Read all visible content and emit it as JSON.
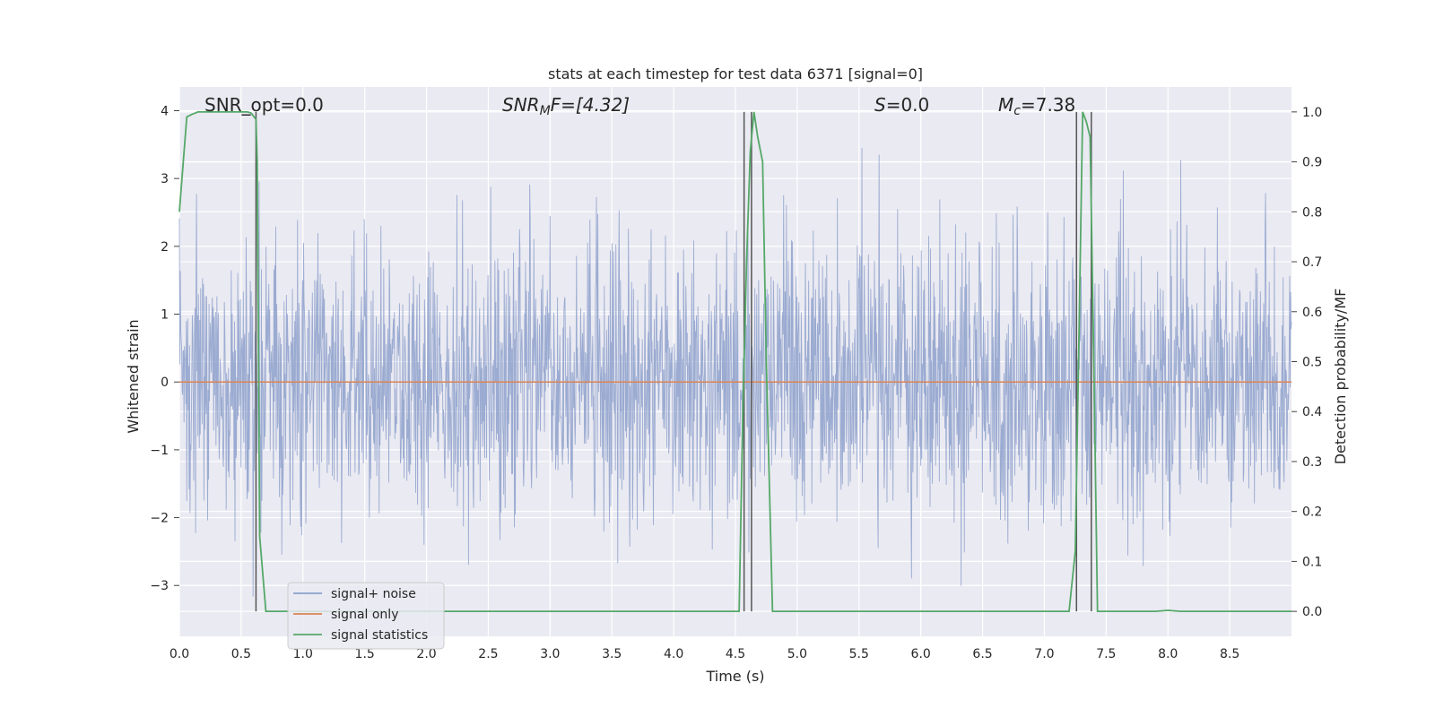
{
  "chart_data": {
    "type": "line",
    "title": "stats at each timestep for test data 6371 [signal=0]",
    "xlabel": "Time (s)",
    "ylabel": "Whitened strain",
    "ylabel_right": "Detection probability/MF",
    "xlim": [
      0,
      9
    ],
    "ylim": [
      -3.75,
      4.35
    ],
    "ylim_right": [
      -0.05,
      1.05
    ],
    "x_ticks": [
      "0.0",
      "0.5",
      "1.0",
      "1.5",
      "2.0",
      "2.5",
      "3.0",
      "3.5",
      "4.0",
      "4.5",
      "5.0",
      "5.5",
      "6.0",
      "6.5",
      "7.0",
      "7.5",
      "8.0",
      "8.5"
    ],
    "y_ticks": [
      "−3",
      "−2",
      "−1",
      "0",
      "1",
      "2",
      "3",
      "4"
    ],
    "y_ticks_right": [
      "0.0",
      "0.1",
      "0.2",
      "0.3",
      "0.4",
      "0.5",
      "0.6",
      "0.7",
      "0.8",
      "0.9",
      "1.0"
    ],
    "grid": true,
    "legend_position": "lower-left",
    "annotations": {
      "snr_opt": "SNR_opt=0.0",
      "snr_mf_base": "SNR",
      "snr_mf_sub": "M",
      "snr_mf_rest": "F=[4.32]",
      "s_italic": "S",
      "s_rest": "=0.0",
      "mc_base": "M",
      "mc_sub": "c",
      "mc_rest": "=7.38"
    },
    "series": [
      {
        "name": "signal+ noise",
        "color": "#8da0cb",
        "description": "whitened noise, approx N(0,1), range roughly -3.3 to 4"
      },
      {
        "name": "signal only",
        "color": "#dd8452",
        "x": [
          0,
          9
        ],
        "y": [
          0,
          0
        ]
      },
      {
        "name": "signal statistics",
        "color": "#55a868",
        "axis": "right",
        "x": [
          0,
          0.06,
          0.1,
          0.15,
          0.2,
          0.3,
          0.4,
          0.5,
          0.55,
          0.58,
          0.62,
          0.63,
          0.65,
          0.7,
          0.8,
          1.0,
          2.0,
          3.0,
          4.0,
          4.5,
          4.53,
          4.56,
          4.59,
          4.62,
          4.65,
          4.68,
          4.72,
          4.75,
          4.8,
          5.0,
          6.0,
          7.0,
          7.15,
          7.2,
          7.25,
          7.28,
          7.31,
          7.34,
          7.37,
          7.4,
          7.43,
          7.5,
          7.7,
          7.9,
          8.0,
          8.1,
          8.5,
          9.0
        ],
        "y": [
          0.8,
          0.99,
          0.995,
          1.0,
          1.0,
          1.0,
          1.0,
          1.0,
          1.0,
          0.998,
          0.985,
          0.9,
          0.15,
          0.0,
          0.0,
          0.0,
          0.0,
          0.0,
          0.0,
          0.0,
          0.0,
          0.4,
          0.7,
          0.92,
          1.0,
          0.95,
          0.9,
          0.5,
          0.0,
          0.0,
          0.0,
          0.0,
          0.0,
          0.0,
          0.12,
          0.55,
          1.0,
          0.98,
          0.95,
          0.5,
          0.0,
          0.0,
          0.0,
          0.0,
          0.002,
          0.0,
          0.0,
          0.0
        ]
      }
    ],
    "vlines": [
      {
        "x": 0.62,
        "y_top": 1.0
      },
      {
        "x": 4.57,
        "y_top": 1.0
      },
      {
        "x": 4.63,
        "y_top": 1.0
      },
      {
        "x": 7.26,
        "y_top": 1.0
      },
      {
        "x": 7.38,
        "y_top": 1.0
      }
    ],
    "legend": [
      "signal+ noise",
      "signal only",
      "signal statistics"
    ]
  }
}
